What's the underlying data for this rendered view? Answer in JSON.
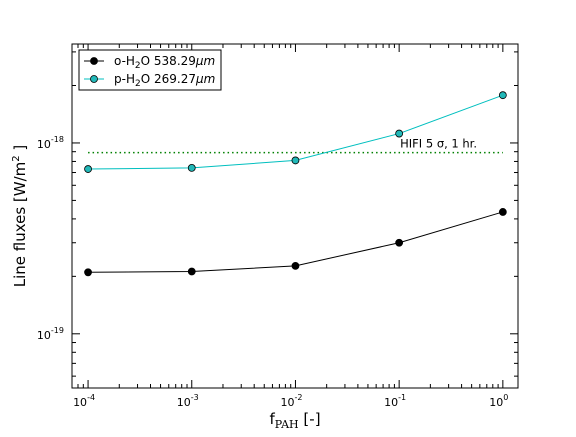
{
  "chart_data": {
    "type": "line",
    "x_scale": "log",
    "y_scale": "log",
    "xlabel": "f",
    "xlabel_sub": "PAH",
    "xlabel_suffix": " [-]",
    "ylabel": "Line fluxes [W/m",
    "ylabel_sup": "2",
    "ylabel_suffix": " ]",
    "xlim": [
      7e-05,
      1.4
    ],
    "ylim": [
      5.2e-20,
      3.3e-18
    ],
    "x": [
      0.0001,
      0.001,
      0.01,
      0.1,
      1
    ],
    "x_ticks": [
      {
        "value": 0.0001,
        "base": "10",
        "exp": "-4"
      },
      {
        "value": 0.001,
        "base": "10",
        "exp": "-3"
      },
      {
        "value": 0.01,
        "base": "10",
        "exp": "-2"
      },
      {
        "value": 0.1,
        "base": "10",
        "exp": "-1"
      },
      {
        "value": 1,
        "base": "10",
        "exp": "0"
      }
    ],
    "y_ticks": [
      {
        "value": 1e-19,
        "base": "10",
        "exp": "-19"
      },
      {
        "value": 1e-18,
        "base": "10",
        "exp": "-18"
      }
    ],
    "series": [
      {
        "label_pre": "o-H",
        "label_sub": "2",
        "label_mid": "O 538.29",
        "label_unit": "μm",
        "color": "#000000",
        "marker_color": "#000000",
        "values": [
          2.1e-19,
          2.12e-19,
          2.27e-19,
          3e-19,
          4.35e-19
        ]
      },
      {
        "label_pre": "p-H",
        "label_sub": "2",
        "label_mid": "O 269.27",
        "label_unit": "μm",
        "color": "#00bfbf",
        "marker_color": "#22b8b8",
        "values": [
          7.3e-19,
          7.4e-19,
          8.1e-19,
          1.12e-18,
          1.78e-18
        ]
      }
    ],
    "reference_line": {
      "value": 8.9e-19,
      "color": "#008000",
      "label": "HIFI 5 σ, 1 hr."
    },
    "legend_position": "upper-left",
    "grid": false
  }
}
